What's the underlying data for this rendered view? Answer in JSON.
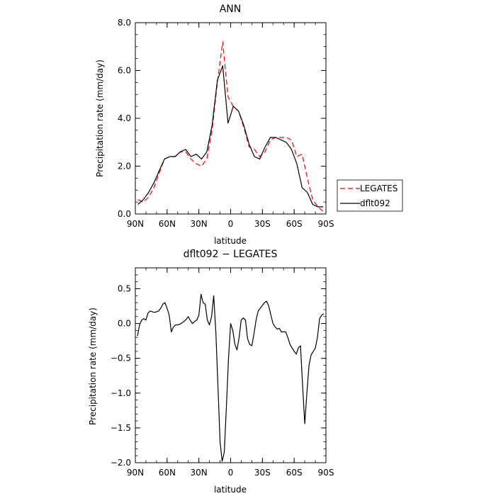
{
  "chart_data": [
    {
      "type": "line",
      "title": "ANN",
      "xlabel": "latitude",
      "ylabel": "Precipitation rate (mm/day)",
      "xlim": [
        90,
        -90
      ],
      "ylim": [
        0,
        8
      ],
      "x_tick_values": [
        90,
        60,
        30,
        0,
        -30,
        -60,
        -90
      ],
      "x_tick_labels": [
        "90N",
        "60N",
        "30N",
        "0",
        "30S",
        "60S",
        "90S"
      ],
      "y_tick_values": [
        0,
        2,
        4,
        6,
        8
      ],
      "y_tick_labels": [
        "0.0",
        "2.0",
        "4.0",
        "6.0",
        "8.0"
      ],
      "legend_position": "right",
      "x": [
        87.5,
        82.5,
        77.5,
        72.5,
        67.5,
        62.5,
        57.5,
        52.5,
        47.5,
        42.5,
        37.5,
        32.5,
        27.5,
        22.5,
        17.5,
        12.5,
        7.5,
        2.5,
        -2.5,
        -7.5,
        -12.5,
        -17.5,
        -22.5,
        -27.5,
        -32.5,
        -37.5,
        -42.5,
        -47.5,
        -52.5,
        -57.5,
        -62.5,
        -67.5,
        -72.5,
        -77.5,
        -82.5,
        -87.5
      ],
      "series": [
        {
          "name": "LEGATES",
          "color": "#ff0000",
          "dash": "dashed",
          "values": [
            0.6,
            0.5,
            0.7,
            1.1,
            1.7,
            2.3,
            2.4,
            2.4,
            2.6,
            2.6,
            2.3,
            2.1,
            2.0,
            2.3,
            3.5,
            5.5,
            7.2,
            4.9,
            4.5,
            4.3,
            3.6,
            2.8,
            2.7,
            2.4,
            2.6,
            3.1,
            3.2,
            3.2,
            3.2,
            3.1,
            2.4,
            2.5,
            1.5,
            0.6,
            0.3,
            0.1
          ]
        },
        {
          "name": "dflt092",
          "color": "#000000",
          "dash": "solid",
          "values": [
            0.4,
            0.6,
            0.9,
            1.3,
            1.8,
            2.3,
            2.4,
            2.4,
            2.6,
            2.7,
            2.4,
            2.5,
            2.3,
            2.6,
            3.7,
            5.6,
            6.2,
            3.8,
            4.5,
            4.3,
            3.7,
            2.9,
            2.4,
            2.3,
            2.8,
            3.2,
            3.2,
            3.1,
            3.0,
            2.7,
            2.1,
            1.1,
            0.9,
            0.4,
            0.3,
            0.3
          ]
        }
      ]
    },
    {
      "type": "line",
      "title": "dflt092 − LEGATES",
      "xlabel": "latitude",
      "ylabel": "Precipitation rate (mm/day)",
      "xlim": [
        90,
        -90
      ],
      "ylim": [
        -2,
        0.8
      ],
      "x_tick_values": [
        90,
        60,
        30,
        0,
        -30,
        -60,
        -90
      ],
      "x_tick_labels": [
        "90N",
        "60N",
        "30N",
        "0",
        "30S",
        "60S",
        "90S"
      ],
      "y_tick_values": [
        0.5,
        0.0,
        -0.5,
        -1.0,
        -1.5,
        -2.0
      ],
      "y_tick_labels": [
        "0.5",
        "0.0",
        "−0.5",
        "−1.0",
        "−1.5",
        "−2.0"
      ],
      "x": [
        88,
        86,
        84,
        82,
        80,
        78,
        76,
        74,
        72,
        70,
        68,
        66,
        64,
        62,
        60,
        58,
        56,
        54,
        52,
        50,
        48,
        46,
        44,
        42,
        40,
        38,
        36,
        34,
        32,
        30,
        28,
        26,
        24,
        22,
        20,
        18,
        16,
        14,
        12,
        10,
        8,
        6,
        4,
        2,
        0,
        -2,
        -4,
        -6,
        -8,
        -10,
        -12,
        -14,
        -16,
        -18,
        -20,
        -22,
        -24,
        -26,
        -28,
        -30,
        -32,
        -34,
        -36,
        -38,
        -40,
        -42,
        -44,
        -46,
        -48,
        -50,
        -52,
        -54,
        -56,
        -58,
        -60,
        -62,
        -64,
        -66,
        -68,
        -70,
        -72,
        -74,
        -76,
        -78,
        -80,
        -82,
        -84,
        -86,
        -88
      ],
      "series": [
        {
          "color": "#000000",
          "dash": "solid",
          "values": [
            -0.18,
            -0.02,
            0.05,
            0.07,
            0.05,
            0.15,
            0.18,
            0.17,
            0.16,
            0.17,
            0.18,
            0.22,
            0.28,
            0.3,
            0.22,
            0.12,
            -0.12,
            -0.05,
            -0.02,
            -0.02,
            -0.01,
            0.01,
            0.03,
            0.06,
            0.1,
            0.04,
            0.0,
            0.03,
            0.05,
            0.12,
            0.42,
            0.3,
            0.28,
            0.05,
            -0.02,
            0.1,
            0.4,
            -0.12,
            -0.9,
            -1.7,
            -1.98,
            -1.85,
            -1.2,
            -0.5,
            0.0,
            -0.1,
            -0.3,
            -0.38,
            -0.2,
            0.05,
            0.08,
            0.05,
            -0.22,
            -0.3,
            -0.32,
            -0.15,
            0.05,
            0.18,
            0.22,
            0.26,
            0.3,
            0.32,
            0.25,
            0.12,
            0.0,
            -0.05,
            -0.08,
            -0.07,
            -0.12,
            -0.12,
            -0.12,
            -0.2,
            -0.3,
            -0.35,
            -0.4,
            -0.44,
            -0.35,
            -0.32,
            -0.9,
            -1.44,
            -1.0,
            -0.6,
            -0.45,
            -0.4,
            -0.35,
            -0.2,
            0.07,
            0.12,
            0.14
          ]
        }
      ]
    }
  ]
}
